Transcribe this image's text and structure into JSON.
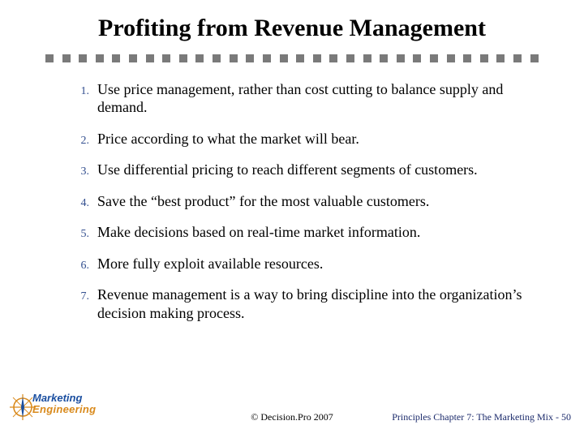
{
  "title": "Profiting from Revenue Management",
  "items": [
    {
      "n": "1.",
      "t": "Use price management, rather than cost cutting to balance supply and demand."
    },
    {
      "n": "2.",
      "t": "Price according to what the market will bear."
    },
    {
      "n": "3.",
      "t": "Use differential pricing to reach different segments of customers."
    },
    {
      "n": "4.",
      "t": "Save the “best product” for the most valuable customers."
    },
    {
      "n": "5.",
      "t": "Make decisions based on real-time market information."
    },
    {
      "n": "6.",
      "t": "More fully exploit available resources."
    },
    {
      "n": "7.",
      "t": "Revenue management is a way to bring discipline into the organization’s decision making process."
    }
  ],
  "divider": {
    "square_count": 30,
    "color": "#7a7a7a"
  },
  "logo": {
    "word1": "Marketing",
    "word2": "Engineering",
    "word1_color": "#1b4fa0",
    "word2_color": "#d98a1c",
    "compass_color": "#d98a1c"
  },
  "footer": {
    "copyright": "© Decision.Pro 2007",
    "pagelabel": "Principles Chapter 7: The Marketing Mix - 50"
  },
  "style": {
    "title_fontsize": 30,
    "body_fontsize": 18,
    "num_fontsize": 14,
    "num_color": "#334f8f",
    "footer_fontsize": 12,
    "pagelabel_color": "#1b2a6b",
    "background": "#ffffff"
  }
}
